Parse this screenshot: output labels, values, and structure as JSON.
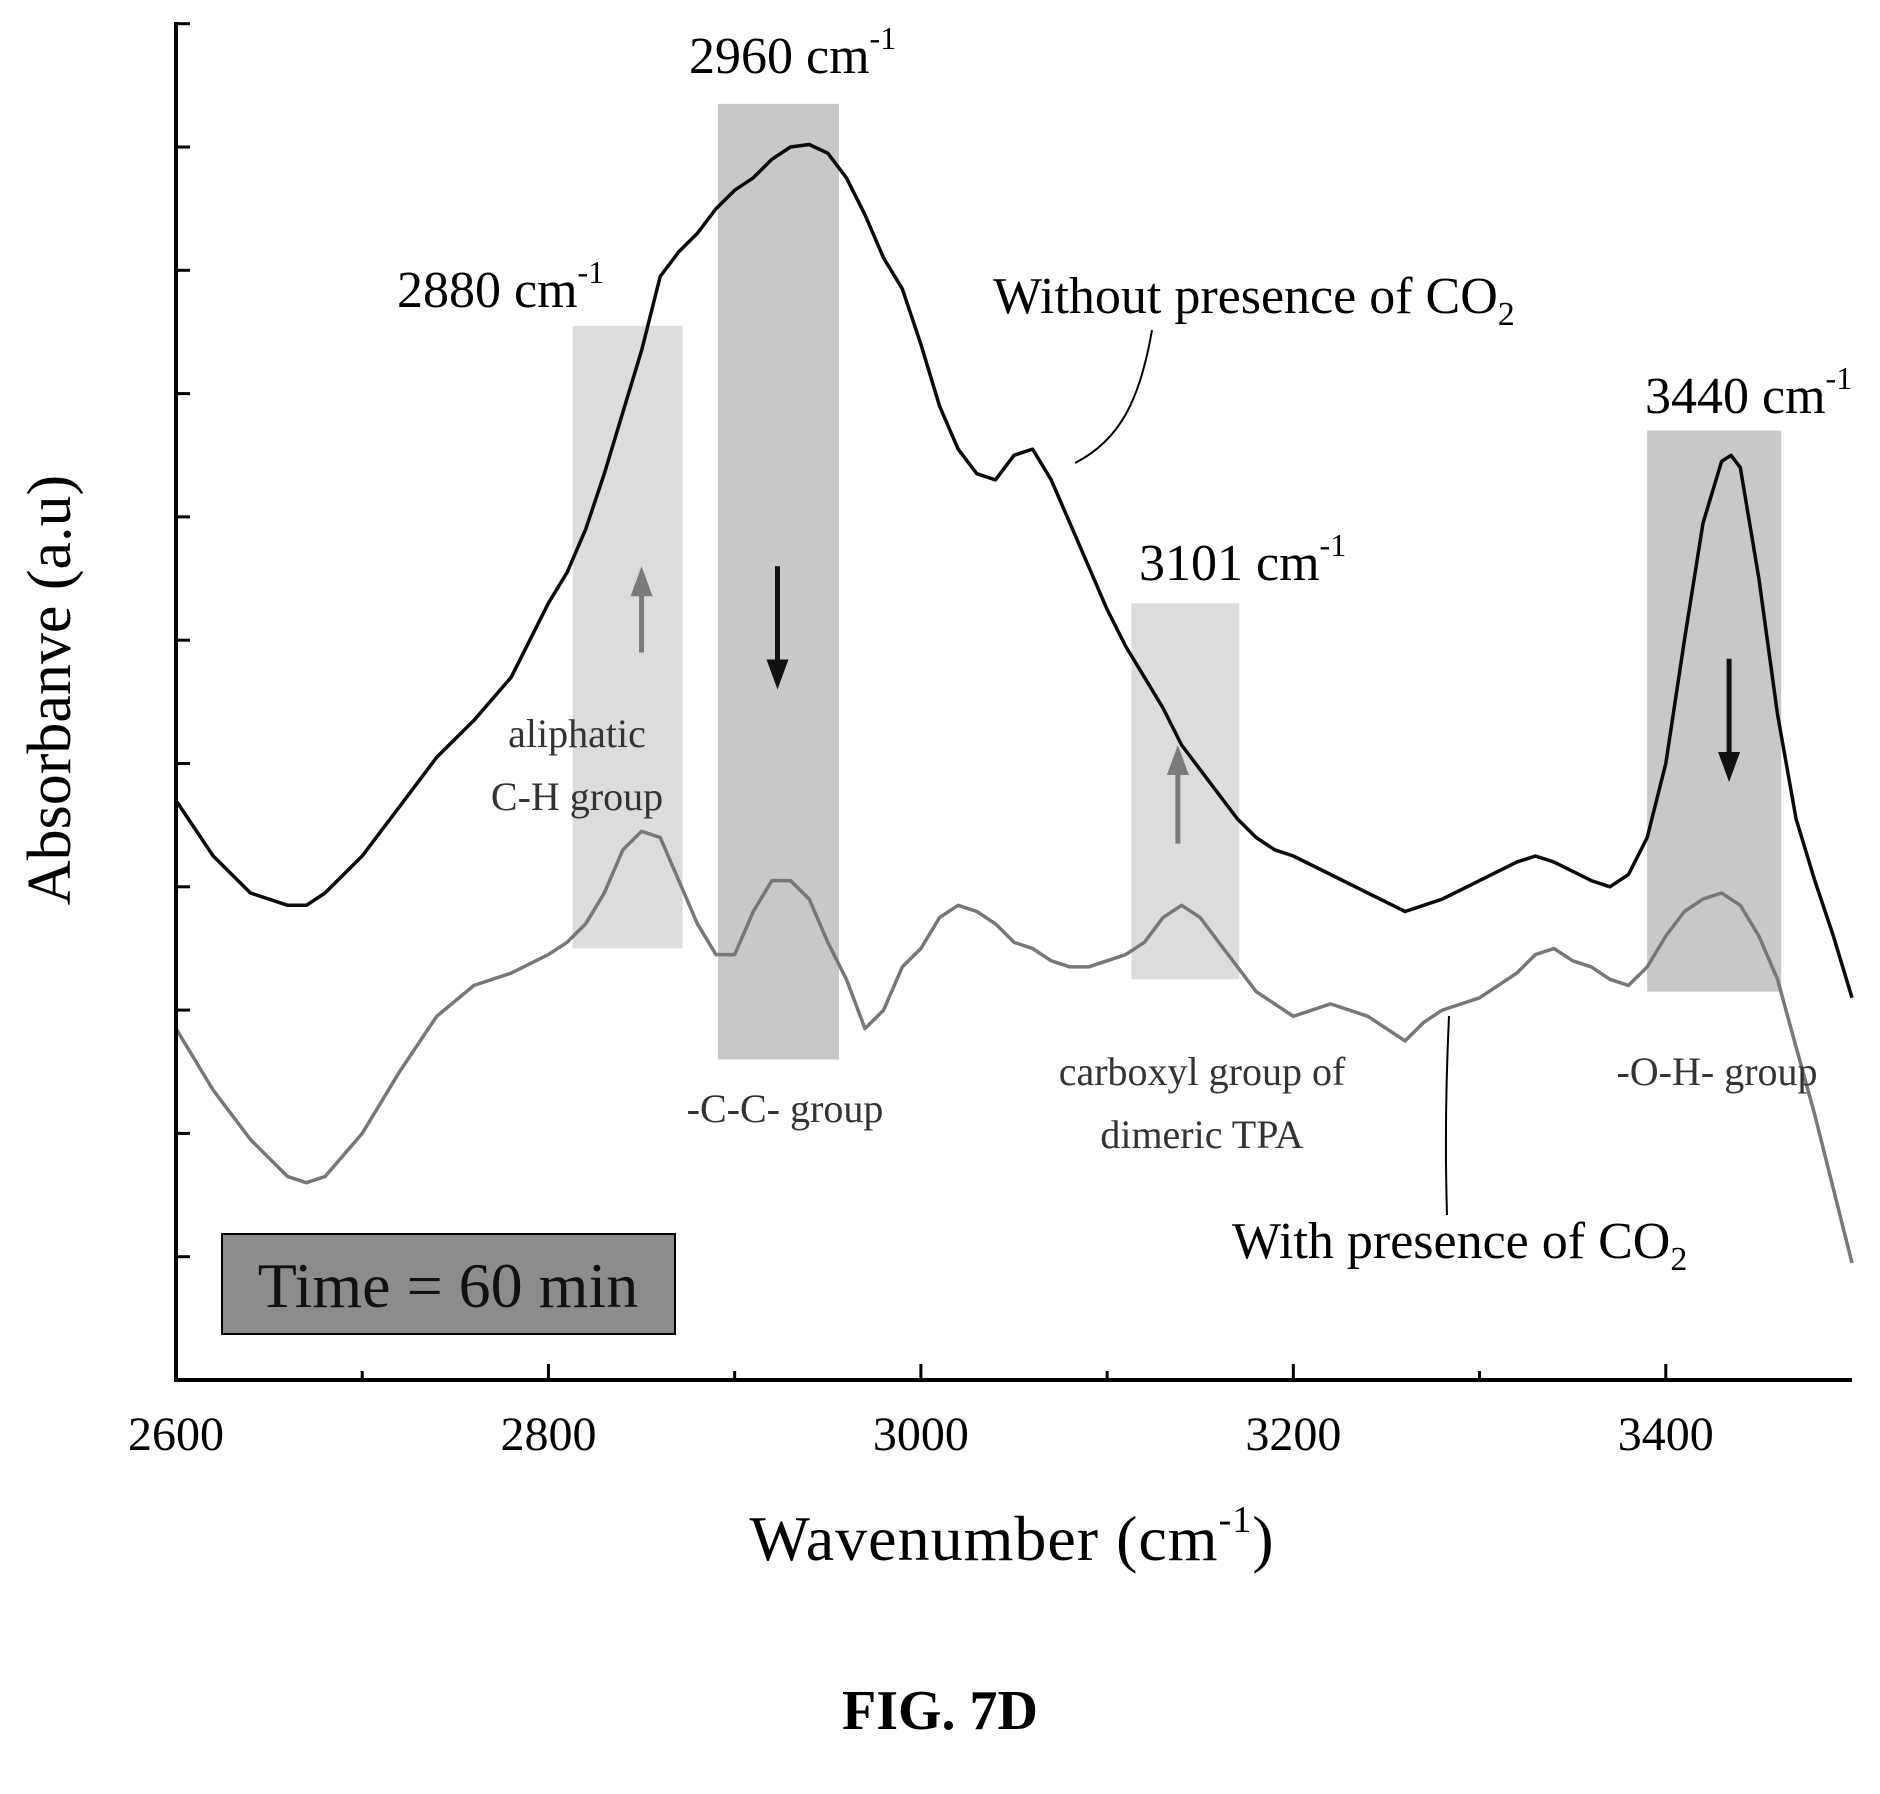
{
  "figure": {
    "caption": "FIG. 7D"
  },
  "colors": {
    "series_without": "#0a0a0a",
    "series_with": "#777777",
    "band_fill": "#c8c8c8",
    "band_fill_light": "#dcdcdc",
    "arrow_up": "#7a7a7a",
    "arrow_down": "#111111",
    "time_box_fill": "#8c8c8c"
  },
  "chart_data": {
    "type": "line",
    "title": "",
    "xlabel": "Wavenumber",
    "xlabel_unit_base": "(cm",
    "xlabel_unit_exp": "-1",
    "xlabel_unit_close": ")",
    "ylabel": "Absorbanve (a.u)",
    "xlim": [
      2600,
      3500
    ],
    "ylim": [
      0,
      11
    ],
    "y_tick_labels_shown": false,
    "x_ticks": [
      2600,
      2800,
      3000,
      3200,
      3400
    ],
    "x_tick_labels": [
      "2600",
      "2800",
      "3000",
      "3200",
      "3400"
    ],
    "y_ticks": [
      0,
      1,
      2,
      3,
      4,
      5,
      6,
      7,
      8,
      9,
      10,
      11
    ],
    "grid": false,
    "series": [
      {
        "name": "Without presence of CO",
        "name_sub": "2",
        "x": [
          2600,
          2620,
          2640,
          2660,
          2670,
          2680,
          2700,
          2720,
          2740,
          2760,
          2780,
          2800,
          2810,
          2820,
          2830,
          2840,
          2850,
          2860,
          2870,
          2880,
          2890,
          2900,
          2910,
          2920,
          2930,
          2940,
          2950,
          2960,
          2970,
          2980,
          2990,
          3000,
          3010,
          3020,
          3030,
          3040,
          3050,
          3060,
          3070,
          3080,
          3090,
          3100,
          3110,
          3120,
          3130,
          3140,
          3150,
          3160,
          3170,
          3180,
          3190,
          3200,
          3220,
          3240,
          3260,
          3270,
          3280,
          3300,
          3320,
          3330,
          3340,
          3360,
          3370,
          3380,
          3390,
          3400,
          3410,
          3420,
          3430,
          3435,
          3440,
          3450,
          3460,
          3470,
          3480,
          3490,
          3500
        ],
        "y": [
          4.7,
          4.25,
          3.95,
          3.85,
          3.85,
          3.95,
          4.25,
          4.65,
          5.05,
          5.35,
          5.7,
          6.3,
          6.55,
          6.9,
          7.35,
          7.85,
          8.35,
          8.95,
          9.15,
          9.3,
          9.5,
          9.65,
          9.75,
          9.9,
          10.0,
          10.02,
          9.95,
          9.75,
          9.45,
          9.1,
          8.85,
          8.4,
          7.9,
          7.55,
          7.35,
          7.3,
          7.5,
          7.55,
          7.3,
          6.95,
          6.6,
          6.25,
          5.95,
          5.7,
          5.45,
          5.15,
          4.95,
          4.75,
          4.55,
          4.4,
          4.3,
          4.25,
          4.1,
          3.95,
          3.8,
          3.85,
          3.9,
          4.05,
          4.2,
          4.25,
          4.2,
          4.05,
          4.0,
          4.1,
          4.4,
          5.0,
          6.0,
          6.95,
          7.45,
          7.5,
          7.4,
          6.5,
          5.4,
          4.55,
          4.05,
          3.6,
          3.1
        ]
      },
      {
        "name": "With presence of CO",
        "name_sub": "2",
        "x": [
          2600,
          2620,
          2640,
          2660,
          2670,
          2680,
          2700,
          2720,
          2740,
          2760,
          2780,
          2800,
          2810,
          2820,
          2830,
          2840,
          2850,
          2860,
          2870,
          2880,
          2890,
          2900,
          2910,
          2920,
          2930,
          2940,
          2950,
          2960,
          2970,
          2980,
          2990,
          3000,
          3010,
          3020,
          3030,
          3040,
          3050,
          3060,
          3070,
          3080,
          3090,
          3100,
          3110,
          3120,
          3130,
          3140,
          3150,
          3160,
          3170,
          3180,
          3190,
          3200,
          3220,
          3240,
          3250,
          3260,
          3270,
          3280,
          3300,
          3320,
          3330,
          3340,
          3350,
          3360,
          3370,
          3380,
          3390,
          3400,
          3410,
          3420,
          3430,
          3440,
          3450,
          3460,
          3470,
          3480,
          3490,
          3500
        ],
        "y": [
          2.85,
          2.35,
          1.95,
          1.65,
          1.6,
          1.65,
          2.0,
          2.5,
          2.95,
          3.2,
          3.3,
          3.45,
          3.55,
          3.7,
          3.95,
          4.3,
          4.45,
          4.4,
          4.05,
          3.7,
          3.45,
          3.45,
          3.8,
          4.05,
          4.05,
          3.9,
          3.55,
          3.25,
          2.85,
          3.0,
          3.35,
          3.5,
          3.75,
          3.85,
          3.8,
          3.7,
          3.55,
          3.5,
          3.4,
          3.35,
          3.35,
          3.4,
          3.45,
          3.55,
          3.75,
          3.85,
          3.75,
          3.55,
          3.35,
          3.15,
          3.05,
          2.95,
          3.05,
          2.95,
          2.85,
          2.75,
          2.9,
          3.0,
          3.1,
          3.3,
          3.45,
          3.5,
          3.4,
          3.35,
          3.25,
          3.2,
          3.35,
          3.6,
          3.8,
          3.9,
          3.95,
          3.85,
          3.6,
          3.25,
          2.7,
          2.15,
          1.55,
          0.95
        ]
      }
    ],
    "highlight_bands": [
      {
        "id": "band-2880",
        "x0": 2813,
        "x1": 2872,
        "y0": 3.5,
        "y1": 8.55,
        "shade": "light"
      },
      {
        "id": "band-2960",
        "x0": 2891,
        "x1": 2956,
        "y0": 2.6,
        "y1": 10.35,
        "shade": "dark"
      },
      {
        "id": "band-3101",
        "x0": 3113,
        "x1": 3171,
        "y0": 3.25,
        "y1": 6.3,
        "shade": "light"
      },
      {
        "id": "band-3440",
        "x0": 3390,
        "x1": 3462,
        "y0": 3.15,
        "y1": 7.7,
        "shade": "dark"
      }
    ],
    "arrows": [
      {
        "id": "arrow-2880",
        "x": 2850,
        "y_from": 5.9,
        "y_to": 6.6,
        "direction": "up",
        "color_key": "arrow_up"
      },
      {
        "id": "arrow-2960",
        "x": 2923,
        "y_from": 6.6,
        "y_to": 5.6,
        "direction": "down",
        "color_key": "arrow_down"
      },
      {
        "id": "arrow-3101",
        "x": 3138,
        "y_from": 4.35,
        "y_to": 5.15,
        "direction": "up",
        "color_key": "arrow_up"
      },
      {
        "id": "arrow-3440",
        "x": 3434,
        "y_from": 5.85,
        "y_to": 4.85,
        "direction": "down",
        "color_key": "arrow_down"
      }
    ],
    "annotations": {
      "peak_labels": [
        {
          "id": "peak-2880",
          "number": "2880 cm",
          "sup": "-1"
        },
        {
          "id": "peak-2960",
          "number": "2960 cm",
          "sup": "-1"
        },
        {
          "id": "peak-3101",
          "number": "3101 cm",
          "sup": "-1"
        },
        {
          "id": "peak-3440",
          "number": "3440 cm",
          "sup": "-1"
        }
      ],
      "group_labels": [
        {
          "id": "group-aliphatic",
          "lines": [
            "aliphatic",
            "C-H group"
          ]
        },
        {
          "id": "group-cc",
          "lines": [
            "-C-C- group"
          ]
        },
        {
          "id": "group-carboxyl",
          "lines": [
            "carboxyl group of",
            "dimeric TPA"
          ]
        },
        {
          "id": "group-oh",
          "lines": [
            "-O-H- group"
          ]
        }
      ],
      "time_box": {
        "label": "Time = 60 min"
      }
    }
  }
}
